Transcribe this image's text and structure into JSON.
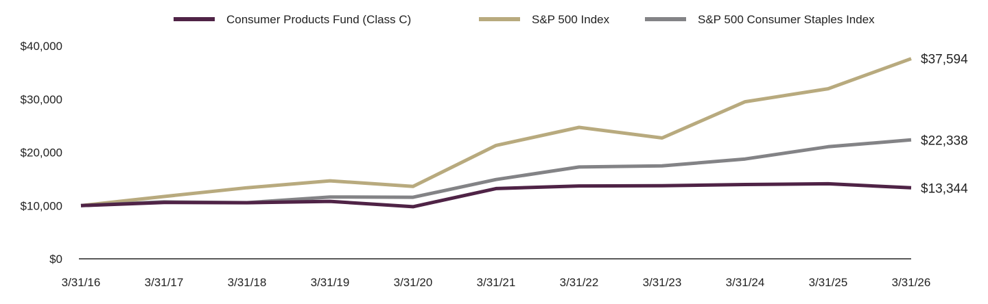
{
  "chart_data": {
    "type": "line",
    "title": "",
    "xlabel": "",
    "ylabel": "",
    "categories": [
      "3/31/16",
      "3/31/17",
      "3/31/18",
      "3/31/19",
      "3/31/20",
      "3/31/21",
      "3/31/22",
      "3/31/23",
      "3/31/24",
      "3/31/25",
      "3/31/26"
    ],
    "ylim": [
      0,
      40000
    ],
    "y_ticks": [
      {
        "value": 0,
        "label": "$0"
      },
      {
        "value": 10000,
        "label": "$10,000"
      },
      {
        "value": 20000,
        "label": "$20,000"
      },
      {
        "value": 30000,
        "label": "$30,000"
      },
      {
        "value": 40000,
        "label": "$40,000"
      }
    ],
    "grid": false,
    "legend_position": "top",
    "series": [
      {
        "name": "Consumer Products Fund (Class C)",
        "color": "#4f2346",
        "values": [
          10000,
          10580,
          10530,
          10790,
          9790,
          13200,
          13680,
          13740,
          13960,
          14100,
          13344
        ],
        "end_label": "$13,344"
      },
      {
        "name": "S&P 500 Index",
        "color": "#b8aa7e",
        "values": [
          10000,
          11700,
          13350,
          14650,
          13600,
          21300,
          24700,
          22700,
          29500,
          31950,
          37594
        ],
        "end_label": "$37,594"
      },
      {
        "name": "S&P 500 Consumer Staples Index",
        "color": "#838386",
        "values": [
          10000,
          10700,
          10550,
          11620,
          11560,
          14900,
          17250,
          17450,
          18750,
          21050,
          22338
        ],
        "end_label": "$22,338"
      }
    ]
  }
}
